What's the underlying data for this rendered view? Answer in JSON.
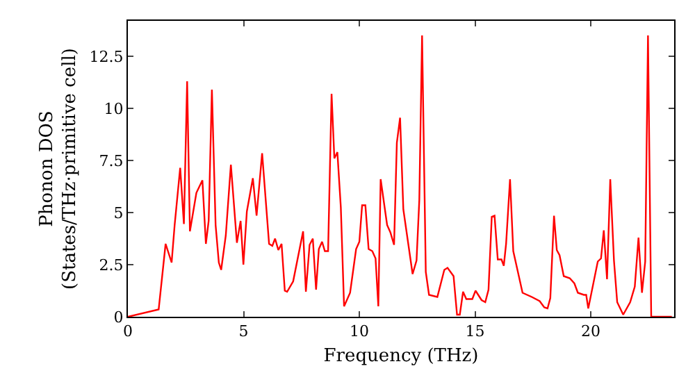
{
  "chart_data": {
    "type": "line",
    "xlabel": "Frequency (THz)",
    "ylabel": "Phonon DOS\n(States/THz·primitive cell)",
    "x": [
      0,
      1.33,
      1.63,
      1.89,
      2.02,
      2.26,
      2.42,
      2.56,
      2.68,
      2.96,
      3.22,
      3.37,
      3.49,
      3.63,
      3.79,
      3.93,
      4.03,
      4.23,
      4.45,
      4.71,
      4.87,
      4.99,
      5.14,
      5.4,
      5.56,
      5.8,
      6.1,
      6.24,
      6.36,
      6.5,
      6.64,
      6.78,
      6.88,
      7.14,
      7.57,
      7.69,
      7.85,
      7.99,
      8.13,
      8.25,
      8.39,
      8.51,
      8.65,
      8.8,
      8.92,
      9.05,
      9.2,
      9.34,
      9.6,
      9.86,
      10.0,
      10.12,
      10.26,
      10.4,
      10.56,
      10.7,
      10.82,
      10.92,
      11.2,
      11.34,
      11.5,
      11.62,
      11.76,
      11.9,
      12.3,
      12.47,
      12.59,
      12.71,
      12.87,
      13.01,
      13.37,
      13.67,
      13.81,
      14.07,
      14.22,
      14.34,
      14.48,
      14.62,
      14.88,
      15.02,
      15.28,
      15.44,
      15.58,
      15.72,
      15.84,
      15.98,
      16.14,
      16.24,
      16.34,
      16.51,
      16.65,
      17.05,
      17.45,
      17.79,
      17.99,
      18.13,
      18.25,
      18.41,
      18.53,
      18.65,
      18.83,
      19.09,
      19.29,
      19.44,
      19.7,
      19.8,
      19.89,
      20.3,
      20.44,
      20.56,
      20.7,
      20.84,
      21.0,
      21.14,
      21.4,
      21.7,
      21.9,
      22.06,
      22.21,
      22.35,
      22.47,
      22.61,
      23.5
    ],
    "series": [
      {
        "color": "#ff0000",
        "values": [
          0,
          0.35,
          3.5,
          2.6,
          4.4,
          7.15,
          4.45,
          11.3,
          4.1,
          5.95,
          6.55,
          3.5,
          4.6,
          10.9,
          4.4,
          2.6,
          2.25,
          3.9,
          7.3,
          3.55,
          4.6,
          2.5,
          5.05,
          6.65,
          4.85,
          7.85,
          3.5,
          3.4,
          3.75,
          3.2,
          3.5,
          1.25,
          1.2,
          1.7,
          4.1,
          1.2,
          3.45,
          3.75,
          1.3,
          3.25,
          3.6,
          3.15,
          3.15,
          10.7,
          7.6,
          7.9,
          5.25,
          0.5,
          1.15,
          3.25,
          3.6,
          5.35,
          5.35,
          3.25,
          3.15,
          2.8,
          0.5,
          6.6,
          4.4,
          4.05,
          3.45,
          8.35,
          9.55,
          5.15,
          2.05,
          2.7,
          5.6,
          13.5,
          2.15,
          1.05,
          0.95,
          2.25,
          2.35,
          1.95,
          0.1,
          0.1,
          1.2,
          0.85,
          0.85,
          1.25,
          0.8,
          0.7,
          1.3,
          4.8,
          4.85,
          2.75,
          2.75,
          2.45,
          3.5,
          6.6,
          3.15,
          1.15,
          0.95,
          0.75,
          0.45,
          0.4,
          0.9,
          4.85,
          3.2,
          2.95,
          1.95,
          1.85,
          1.6,
          1.15,
          1.05,
          1.05,
          0.4,
          2.65,
          2.8,
          4.15,
          1.8,
          6.6,
          2.7,
          0.7,
          0.1,
          0.7,
          1.45,
          3.8,
          1.15,
          2.65,
          13.5,
          0,
          0
        ]
      }
    ],
    "xlim": [
      0,
      23.6
    ],
    "ylim": [
      0,
      14.2
    ],
    "xticks": [
      0,
      5,
      10,
      15,
      20
    ],
    "yticks": [
      0,
      2.5,
      5,
      7.5,
      10,
      12.5
    ],
    "grid": false,
    "marker": "none",
    "line_style": "solid"
  }
}
